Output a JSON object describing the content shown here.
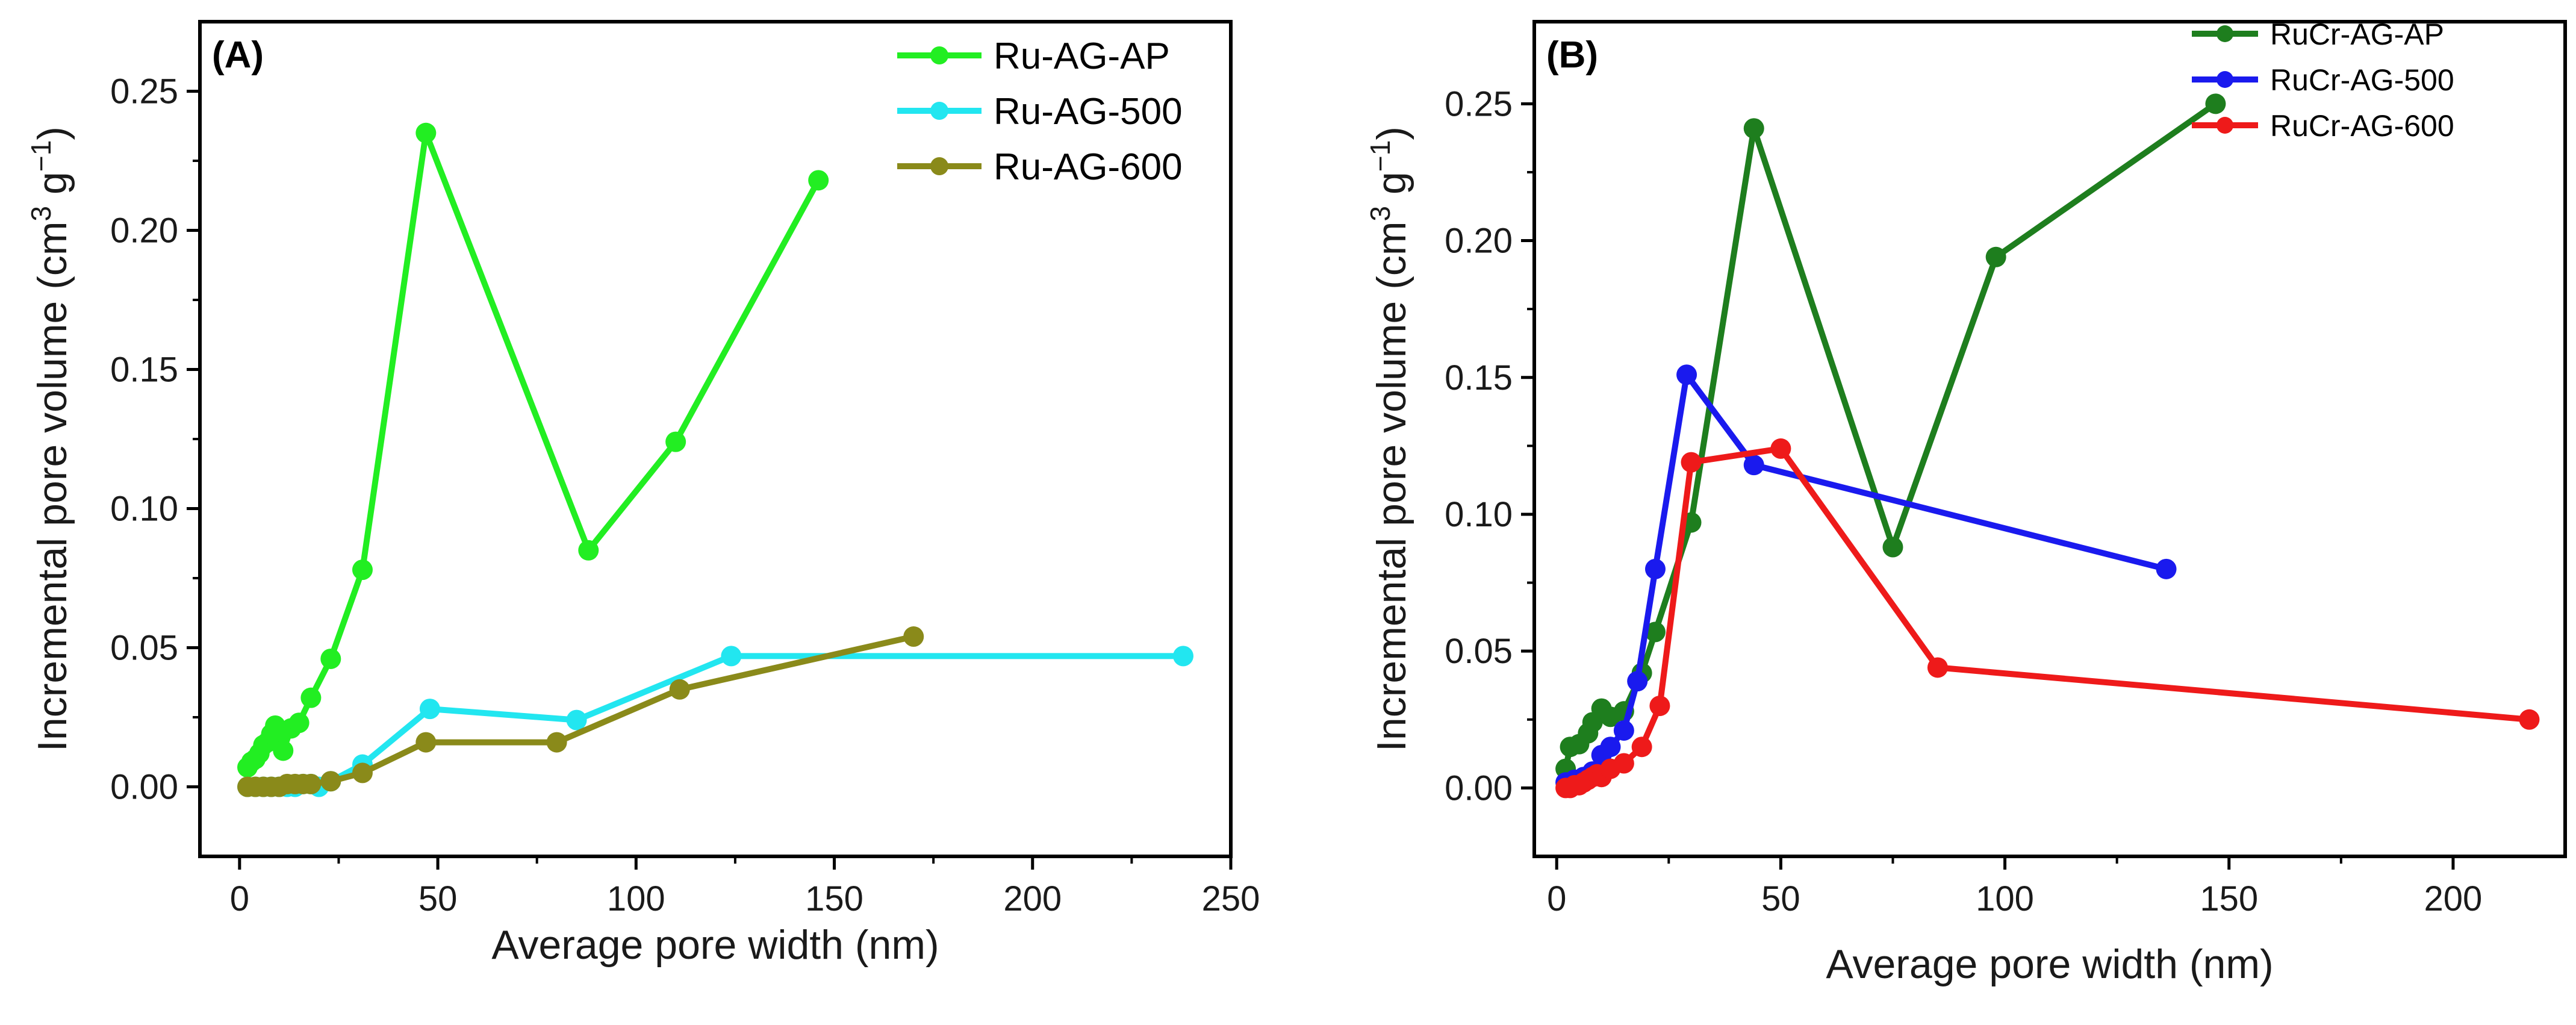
{
  "chart_data": [
    {
      "panel": "(A)",
      "type": "line",
      "xlabel": "Average pore width (nm)",
      "ylabel_main": "Incremental pore volume (cm",
      "ylabel_sup1": "3",
      "ylabel_mid": " g",
      "ylabel_sup2": "−1",
      "ylabel_end": ")",
      "xlim": [
        -10,
        250
      ],
      "ylim": [
        -0.025,
        0.275
      ],
      "xticks": [
        0,
        50,
        100,
        150,
        200,
        250
      ],
      "yticks": [
        0.0,
        0.05,
        0.1,
        0.15,
        0.2,
        0.25
      ],
      "ytick_labels": [
        "0.00",
        "0.05",
        "0.10",
        "0.15",
        "0.20",
        "0.25"
      ],
      "legend_position": "top-right",
      "series": [
        {
          "name": "Ru-AG-AP",
          "color": "#22ee22",
          "points": [
            [
              2,
              0.007
            ],
            [
              3,
              0.009
            ],
            [
              4,
              0.01
            ],
            [
              5,
              0.012
            ],
            [
              6,
              0.015
            ],
            [
              7,
              0.016
            ],
            [
              8,
              0.019
            ],
            [
              9,
              0.022
            ],
            [
              10,
              0.017
            ],
            [
              11,
              0.013
            ],
            [
              13,
              0.021
            ],
            [
              15,
              0.023
            ],
            [
              18,
              0.032
            ],
            [
              23,
              0.046
            ],
            [
              31,
              0.078
            ],
            [
              47,
              0.235
            ],
            [
              88,
              0.085
            ],
            [
              110,
              0.124
            ],
            [
              146,
              0.218
            ]
          ]
        },
        {
          "name": "Ru-AG-500",
          "color": "#22e6f0",
          "points": [
            [
              2,
              0.0
            ],
            [
              4,
              0.0
            ],
            [
              6,
              0.0
            ],
            [
              8,
              0.0
            ],
            [
              10,
              0.0
            ],
            [
              12,
              0.0
            ],
            [
              14,
              0.0
            ],
            [
              16,
              0.001
            ],
            [
              18,
              0.001
            ],
            [
              20,
              0.0
            ],
            [
              23,
              0.002
            ],
            [
              31,
              0.008
            ],
            [
              48,
              0.028
            ],
            [
              85,
              0.024
            ],
            [
              124,
              0.047
            ],
            [
              238,
              0.047
            ]
          ]
        },
        {
          "name": "Ru-AG-600",
          "color": "#8a8a1a",
          "points": [
            [
              2,
              0.0
            ],
            [
              4,
              0.0
            ],
            [
              6,
              0.0
            ],
            [
              8,
              0.0
            ],
            [
              10,
              0.0
            ],
            [
              12,
              0.001
            ],
            [
              14,
              0.001
            ],
            [
              16,
              0.001
            ],
            [
              18,
              0.001
            ],
            [
              23,
              0.002
            ],
            [
              31,
              0.005
            ],
            [
              47,
              0.016
            ],
            [
              80,
              0.016
            ],
            [
              111,
              0.035
            ],
            [
              170,
              0.054
            ]
          ]
        }
      ]
    },
    {
      "panel": "(B)",
      "type": "line",
      "xlabel": "Average pore width (nm)",
      "ylabel_main": "Incremental pore volume (cm",
      "ylabel_sup1": "3",
      "ylabel_mid": " g",
      "ylabel_sup2": "−1",
      "ylabel_end": ")",
      "xlim": [
        -5,
        225
      ],
      "ylim": [
        -0.025,
        0.28
      ],
      "xticks": [
        0,
        50,
        100,
        150,
        200
      ],
      "yticks": [
        0.0,
        0.05,
        0.1,
        0.15,
        0.2,
        0.25
      ],
      "ytick_labels": [
        "0.00",
        "0.05",
        "0.10",
        "0.15",
        "0.20",
        "0.25"
      ],
      "legend_position": "top-right",
      "series": [
        {
          "name": "RuCr-AG-AP",
          "color": "#1e7e1e",
          "points": [
            [
              2,
              0.007
            ],
            [
              3,
              0.015
            ],
            [
              5,
              0.016
            ],
            [
              7,
              0.02
            ],
            [
              8,
              0.024
            ],
            [
              10,
              0.029
            ],
            [
              12,
              0.026
            ],
            [
              15,
              0.028
            ],
            [
              19,
              0.042
            ],
            [
              22,
              0.057
            ],
            [
              30,
              0.097
            ],
            [
              44,
              0.241
            ],
            [
              75,
              0.088
            ],
            [
              98,
              0.194
            ],
            [
              147,
              0.25
            ]
          ]
        },
        {
          "name": "RuCr-AG-500",
          "color": "#1a1aee",
          "points": [
            [
              2,
              0.002
            ],
            [
              4,
              0.003
            ],
            [
              6,
              0.004
            ],
            [
              8,
              0.006
            ],
            [
              10,
              0.012
            ],
            [
              12,
              0.015
            ],
            [
              15,
              0.021
            ],
            [
              18,
              0.039
            ],
            [
              22,
              0.08
            ],
            [
              29,
              0.151
            ],
            [
              44,
              0.118
            ],
            [
              136,
              0.08
            ]
          ]
        },
        {
          "name": "RuCr-AG-600",
          "color": "#ee1a1a",
          "points": [
            [
              2,
              0.0
            ],
            [
              3,
              0.0
            ],
            [
              4,
              0.001
            ],
            [
              5,
              0.001
            ],
            [
              6,
              0.002
            ],
            [
              7,
              0.003
            ],
            [
              8,
              0.004
            ],
            [
              9,
              0.005
            ],
            [
              10,
              0.004
            ],
            [
              12,
              0.007
            ],
            [
              15,
              0.009
            ],
            [
              19,
              0.015
            ],
            [
              23,
              0.03
            ],
            [
              30,
              0.119
            ],
            [
              50,
              0.124
            ],
            [
              85,
              0.044
            ],
            [
              217,
              0.025
            ]
          ]
        }
      ]
    }
  ]
}
